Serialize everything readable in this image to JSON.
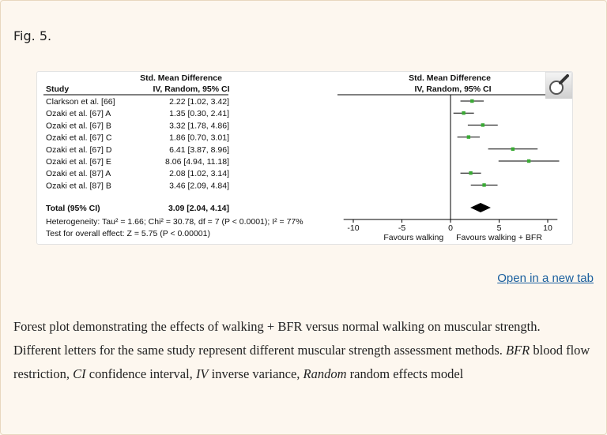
{
  "figure": {
    "label": "Fig. 5.",
    "open_link": "Open in a new tab",
    "caption_parts": [
      {
        "text": "Forest plot demonstrating the effects of walking + BFR versus normal walking on muscular strength. Different letters for the same study represent different muscular strength assessment methods. ",
        "italic": false
      },
      {
        "text": "BFR",
        "italic": true
      },
      {
        "text": " blood flow restriction, ",
        "italic": false
      },
      {
        "text": "CI",
        "italic": true
      },
      {
        "text": " confidence interval, ",
        "italic": false
      },
      {
        "text": "IV",
        "italic": true
      },
      {
        "text": " inverse variance, ",
        "italic": false
      },
      {
        "text": "Random",
        "italic": true
      },
      {
        "text": " random effects model",
        "italic": false
      }
    ]
  },
  "chart_data": {
    "type": "forest",
    "column_headers": {
      "study": "Study",
      "effect_line1": "Std. Mean Difference",
      "effect_line2": "IV, Random, 95% CI",
      "plot_line1": "Std. Mean Difference",
      "plot_line2": "IV, Random, 95% CI"
    },
    "studies": [
      {
        "name": "Clarkson et al. [66]",
        "label": "2.22 [1.02, 3.42]",
        "est": 2.22,
        "lo": 1.02,
        "hi": 3.42
      },
      {
        "name": "Ozaki et al. [67] A",
        "label": "1.35 [0.30, 2.41]",
        "est": 1.35,
        "lo": 0.3,
        "hi": 2.41
      },
      {
        "name": "Ozaki et al. [67] B",
        "label": "3.32 [1.78, 4.86]",
        "est": 3.32,
        "lo": 1.78,
        "hi": 4.86
      },
      {
        "name": "Ozaki et al. [67] C",
        "label": "1.86 [0.70, 3.01]",
        "est": 1.86,
        "lo": 0.7,
        "hi": 3.01
      },
      {
        "name": "Ozaki et al. [67] D",
        "label": "6.41 [3.87, 8.96]",
        "est": 6.41,
        "lo": 3.87,
        "hi": 8.96
      },
      {
        "name": "Ozaki et al. [67] E",
        "label": "8.06 [4.94, 11.18]",
        "est": 8.06,
        "lo": 4.94,
        "hi": 11.18
      },
      {
        "name": "Ozaki et al. [87] A",
        "label": "2.08 [1.02, 3.14]",
        "est": 2.08,
        "lo": 1.02,
        "hi": 3.14
      },
      {
        "name": "Ozaki et al. [87] B",
        "label": "3.46 [2.09, 4.84]",
        "est": 3.46,
        "lo": 2.09,
        "hi": 4.84
      }
    ],
    "total": {
      "name": "Total (95% CI)",
      "label": "3.09 [2.04, 4.14]",
      "est": 3.09,
      "lo": 2.04,
      "hi": 4.14
    },
    "heterogeneity": "Heterogeneity: Tau² = 1.66; Chi² = 30.78, df = 7 (P < 0.0001); I² = 77%",
    "overall_effect": "Test for overall effect: Z = 5.75 (P < 0.00001)",
    "xlim": [
      -11,
      11
    ],
    "ticks": [
      -10,
      -5,
      0,
      5,
      10
    ],
    "tick_labels": [
      "-10",
      "-5",
      "0",
      "5",
      "10"
    ],
    "favours_left": "Favours walking",
    "favours_right": "Favours walking + BFR",
    "colors": {
      "marker": "#3aaa35",
      "line": "#000000",
      "diamond": "#000000"
    }
  }
}
